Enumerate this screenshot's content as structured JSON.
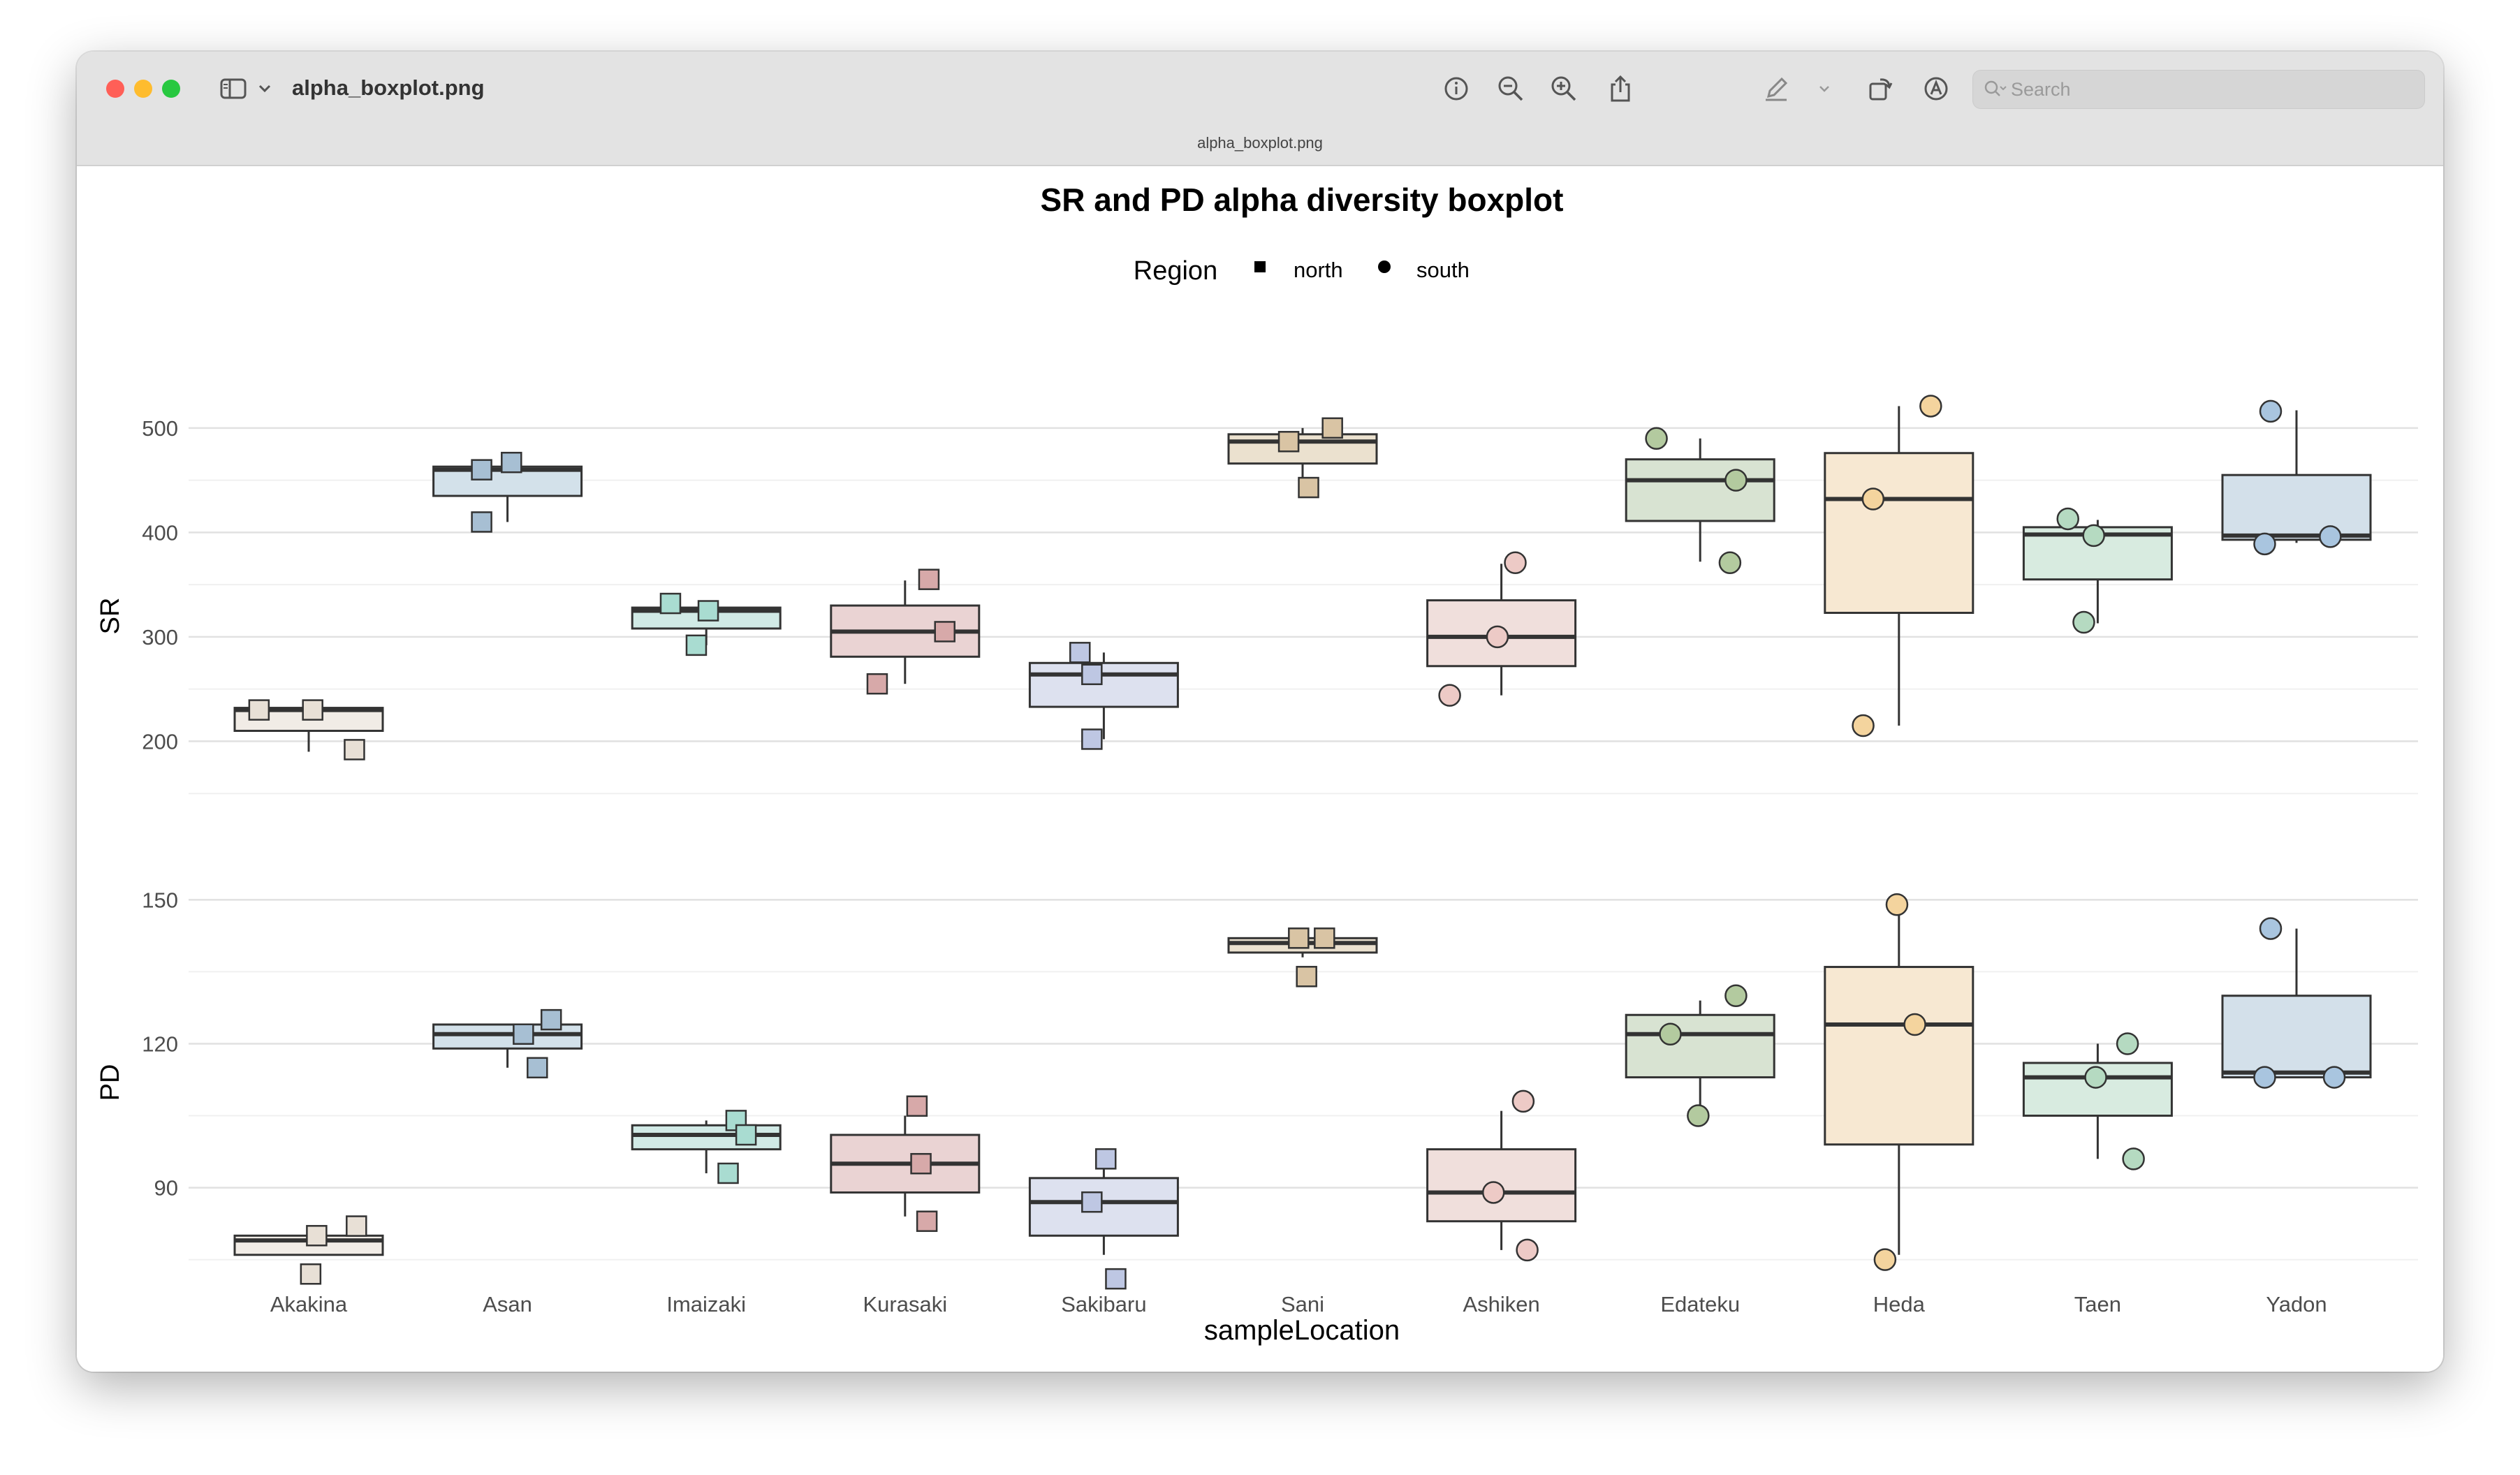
{
  "window": {
    "file_name": "alpha_boxplot.png",
    "subtitle": "alpha_boxplot.png",
    "search_placeholder": "Search"
  },
  "toolbar": {
    "icons": [
      "sidebar-icon",
      "chevron-down-icon",
      "info-icon",
      "zoom-out-icon",
      "zoom-in-icon",
      "share-icon",
      "markup-pen-icon",
      "chevron-down-icon",
      "rotate-icon",
      "markup-circle-icon",
      "signature-icon",
      "search-icon"
    ]
  },
  "colors": {
    "close": "#ff5f57",
    "minimize": "#febc2e",
    "zoom": "#28c840"
  },
  "chart_data": {
    "type": "boxplot",
    "title": "SR and PD alpha diversity boxplot",
    "xlabel": "sampleLocation",
    "legend": {
      "title": "Region",
      "position": "top",
      "entries": [
        {
          "label": "north",
          "shape": "square"
        },
        {
          "label": "south",
          "shape": "circle"
        }
      ]
    },
    "categories": [
      "Akakina",
      "Asan",
      "Imaizaki",
      "Kurasaki",
      "Sakibaru",
      "Sani",
      "Ashiken",
      "Edateku",
      "Heda",
      "Taen",
      "Yadon"
    ],
    "region": [
      "north",
      "north",
      "north",
      "north",
      "north",
      "north",
      "south",
      "south",
      "south",
      "south",
      "south"
    ],
    "fill_colors": [
      "#f1ece6",
      "#d3e1ea",
      "#d1eae6",
      "#ead3d3",
      "#dde1ef",
      "#ebe1cf",
      "#f0dfdc",
      "#d8e3d2",
      "#f7e8d2",
      "#d8ebe0",
      "#d3e0ea"
    ],
    "point_colors": [
      "#e8e0d6",
      "#a7bfd3",
      "#a9dcd1",
      "#d7a9a9",
      "#bec7e3",
      "#d9c4a4",
      "#edcac6",
      "#b3ca9f",
      "#f4d49e",
      "#b5dac1",
      "#a9c5df"
    ],
    "panels": [
      {
        "name": "SR",
        "ylabel": "SR",
        "ylim": [
          110,
          530
        ],
        "yticks": [
          200,
          300,
          400,
          500
        ],
        "grid": true,
        "boxes": [
          {
            "q1": 210,
            "median": 230,
            "q3": 232,
            "whisker_low": 190,
            "whisker_high": 232,
            "points": [
              {
                "x": -0.25,
                "y": 230
              },
              {
                "x": 0.02,
                "y": 230
              },
              {
                "x": 0.23,
                "y": 192
              }
            ]
          },
          {
            "q1": 435,
            "median": 460,
            "q3": 463,
            "whisker_low": 410,
            "whisker_high": 465,
            "points": [
              {
                "x": -0.13,
                "y": 460
              },
              {
                "x": 0.02,
                "y": 467
              },
              {
                "x": -0.13,
                "y": 410
              }
            ]
          },
          {
            "q1": 308,
            "median": 325,
            "q3": 328,
            "whisker_low": 292,
            "whisker_high": 330,
            "points": [
              {
                "x": -0.18,
                "y": 332
              },
              {
                "x": 0.01,
                "y": 325
              },
              {
                "x": -0.05,
                "y": 292
              }
            ]
          },
          {
            "q1": 281,
            "median": 305,
            "q3": 330,
            "whisker_low": 255,
            "whisker_high": 354,
            "points": [
              {
                "x": 0.12,
                "y": 355
              },
              {
                "x": 0.2,
                "y": 305
              },
              {
                "x": -0.14,
                "y": 255
              }
            ]
          },
          {
            "q1": 233,
            "median": 264,
            "q3": 275,
            "whisker_low": 202,
            "whisker_high": 285,
            "points": [
              {
                "x": -0.12,
                "y": 285
              },
              {
                "x": -0.06,
                "y": 264
              },
              {
                "x": -0.06,
                "y": 202
              }
            ]
          },
          {
            "q1": 466,
            "median": 487,
            "q3": 494,
            "whisker_low": 443,
            "whisker_high": 500,
            "points": [
              {
                "x": -0.07,
                "y": 487
              },
              {
                "x": 0.15,
                "y": 500
              },
              {
                "x": 0.03,
                "y": 443
              }
            ]
          },
          {
            "q1": 272,
            "median": 300,
            "q3": 335,
            "whisker_low": 244,
            "whisker_high": 370,
            "points": [
              {
                "x": 0.07,
                "y": 371
              },
              {
                "x": -0.02,
                "y": 300
              },
              {
                "x": -0.26,
                "y": 244
              }
            ]
          },
          {
            "q1": 411,
            "median": 450,
            "q3": 470,
            "whisker_low": 372,
            "whisker_high": 490,
            "points": [
              {
                "x": -0.22,
                "y": 490
              },
              {
                "x": 0.18,
                "y": 450
              },
              {
                "x": 0.15,
                "y": 371
              }
            ]
          },
          {
            "q1": 323,
            "median": 432,
            "q3": 476,
            "whisker_low": 215,
            "whisker_high": 521,
            "points": [
              {
                "x": 0.16,
                "y": 521
              },
              {
                "x": -0.13,
                "y": 432
              },
              {
                "x": -0.18,
                "y": 215
              }
            ]
          },
          {
            "q1": 355,
            "median": 398,
            "q3": 405,
            "whisker_low": 313,
            "whisker_high": 412,
            "points": [
              {
                "x": -0.15,
                "y": 413
              },
              {
                "x": -0.02,
                "y": 397
              },
              {
                "x": -0.07,
                "y": 314
              }
            ]
          },
          {
            "q1": 393,
            "median": 397,
            "q3": 455,
            "whisker_low": 390,
            "whisker_high": 517,
            "points": [
              {
                "x": -0.13,
                "y": 516
              },
              {
                "x": -0.16,
                "y": 389
              },
              {
                "x": 0.17,
                "y": 396
              }
            ]
          }
        ]
      },
      {
        "name": "PD",
        "ylabel": "PD",
        "ylim": [
          70,
          155
        ],
        "yticks": [
          90,
          120,
          150
        ],
        "grid": true,
        "boxes": [
          {
            "q1": 76,
            "median": 79,
            "q3": 80,
            "whisker_low": 76,
            "whisker_high": 80,
            "points": [
              {
                "x": 0.04,
                "y": 80
              },
              {
                "x": 0.24,
                "y": 82
              },
              {
                "x": 0.01,
                "y": 72
              }
            ]
          },
          {
            "q1": 119,
            "median": 122,
            "q3": 124,
            "whisker_low": 115,
            "whisker_high": 124,
            "points": [
              {
                "x": 0.08,
                "y": 122
              },
              {
                "x": 0.22,
                "y": 125
              },
              {
                "x": 0.15,
                "y": 115
              }
            ]
          },
          {
            "q1": 98,
            "median": 101,
            "q3": 103,
            "whisker_low": 93,
            "whisker_high": 104,
            "points": [
              {
                "x": 0.15,
                "y": 104
              },
              {
                "x": 0.2,
                "y": 101
              },
              {
                "x": 0.11,
                "y": 93
              }
            ]
          },
          {
            "q1": 89,
            "median": 95,
            "q3": 101,
            "whisker_low": 84,
            "whisker_high": 105,
            "points": [
              {
                "x": 0.06,
                "y": 107
              },
              {
                "x": 0.08,
                "y": 95
              },
              {
                "x": 0.11,
                "y": 83
              }
            ]
          },
          {
            "q1": 80,
            "median": 87,
            "q3": 92,
            "whisker_low": 76,
            "whisker_high": 95,
            "points": [
              {
                "x": 0.01,
                "y": 96
              },
              {
                "x": -0.06,
                "y": 87
              },
              {
                "x": 0.06,
                "y": 71
              }
            ]
          },
          {
            "q1": 139,
            "median": 141,
            "q3": 142,
            "whisker_low": 138,
            "whisker_high": 142,
            "points": [
              {
                "x": -0.02,
                "y": 142
              },
              {
                "x": 0.11,
                "y": 142
              },
              {
                "x": 0.02,
                "y": 134
              }
            ]
          },
          {
            "q1": 83,
            "median": 89,
            "q3": 98,
            "whisker_low": 77,
            "whisker_high": 106,
            "points": [
              {
                "x": 0.11,
                "y": 108
              },
              {
                "x": -0.04,
                "y": 89
              },
              {
                "x": 0.13,
                "y": 77
              }
            ]
          },
          {
            "q1": 113,
            "median": 122,
            "q3": 126,
            "whisker_low": 106,
            "whisker_high": 129,
            "points": [
              {
                "x": 0.18,
                "y": 130
              },
              {
                "x": -0.15,
                "y": 122
              },
              {
                "x": -0.01,
                "y": 105
              }
            ]
          },
          {
            "q1": 99,
            "median": 124,
            "q3": 136,
            "whisker_low": 76,
            "whisker_high": 147,
            "points": [
              {
                "x": -0.01,
                "y": 149
              },
              {
                "x": 0.08,
                "y": 124
              },
              {
                "x": -0.07,
                "y": 75
              }
            ]
          },
          {
            "q1": 105,
            "median": 113,
            "q3": 116,
            "whisker_low": 96,
            "whisker_high": 120,
            "points": [
              {
                "x": 0.15,
                "y": 120
              },
              {
                "x": -0.01,
                "y": 113
              },
              {
                "x": 0.18,
                "y": 96
              }
            ]
          },
          {
            "q1": 113,
            "median": 114,
            "q3": 130,
            "whisker_low": 113,
            "whisker_high": 144,
            "points": [
              {
                "x": -0.13,
                "y": 144
              },
              {
                "x": -0.16,
                "y": 113
              },
              {
                "x": 0.19,
                "y": 113
              }
            ]
          }
        ]
      }
    ]
  }
}
